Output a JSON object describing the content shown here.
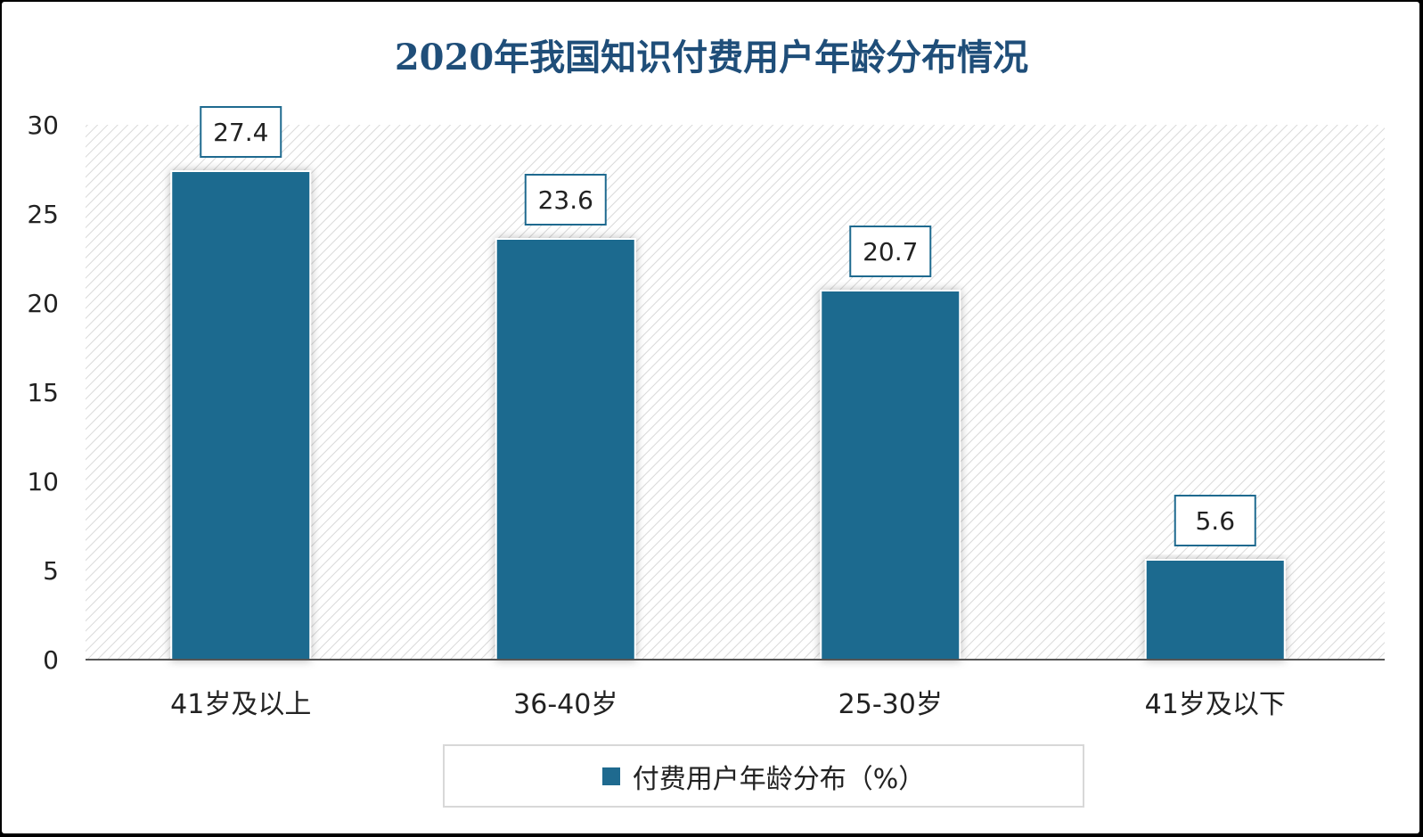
{
  "chart_data": {
    "type": "bar",
    "title": "2020年我国知识付费用户年龄分布情况",
    "categories": [
      "41岁及以上",
      "36-40岁",
      "25-30岁",
      "41岁及以下"
    ],
    "series": [
      {
        "name": "付费用户年龄分布（%）",
        "values": [
          27.4,
          23.6,
          20.7,
          5.6
        ]
      }
    ],
    "ylim": [
      0,
      30
    ],
    "yticks": [
      0,
      5,
      10,
      15,
      20,
      25,
      30
    ],
    "grid": false,
    "legend": "bottom",
    "colors": {
      "bar": "#1f6a8f",
      "title": "#1f4e79"
    }
  }
}
